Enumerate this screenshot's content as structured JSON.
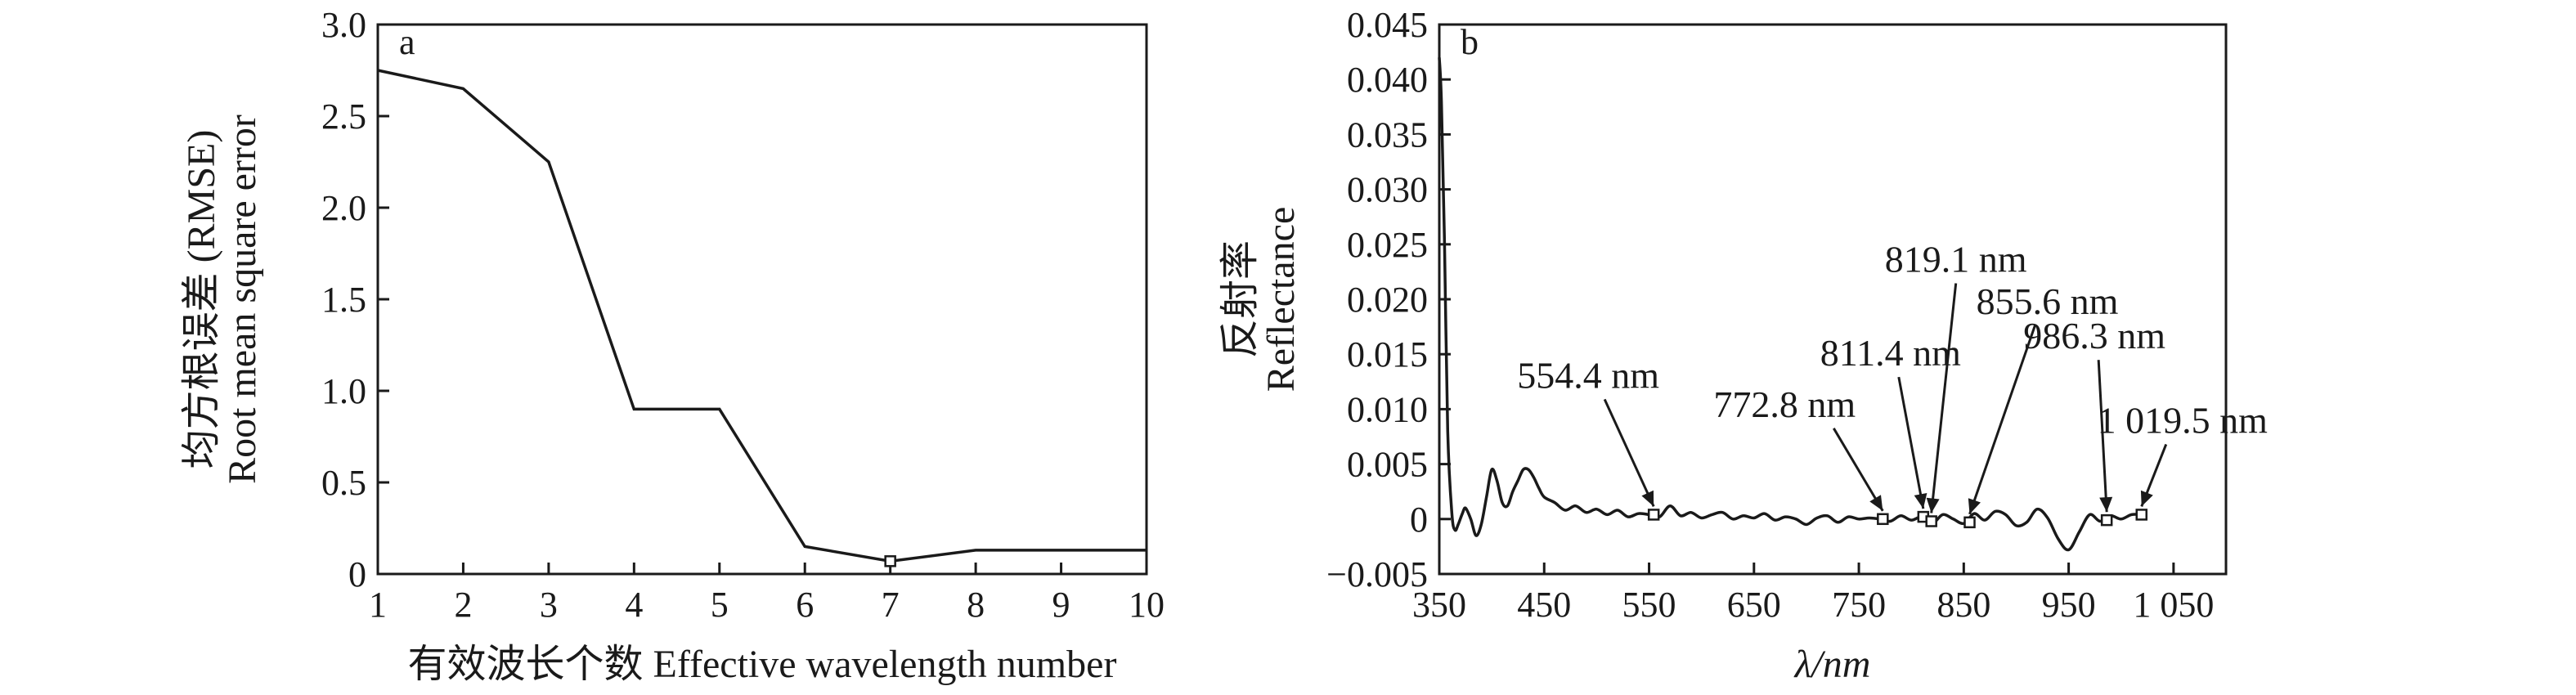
{
  "chart_data": [
    {
      "type": "line",
      "panel_label": "a",
      "xlabel": "有效波长个数 Effective wavelength number",
      "ylabel": "均方根误差 (RMSE)",
      "ylabel2": "Root mean square error",
      "xlim": [
        1,
        10
      ],
      "ylim": [
        0,
        3.0
      ],
      "xticks": [
        "1",
        "2",
        "3",
        "4",
        "5",
        "6",
        "7",
        "8",
        "9",
        "10"
      ],
      "yticks": [
        "0",
        "0.5",
        "1.0",
        "1.5",
        "2.0",
        "2.5",
        "3.0"
      ],
      "x": [
        1,
        2,
        3,
        4,
        5,
        6,
        7,
        8,
        9,
        10
      ],
      "y": [
        2.75,
        2.65,
        2.25,
        0.9,
        0.9,
        0.15,
        0.07,
        0.13,
        0.13,
        0.13
      ],
      "marked_point": {
        "x": 7,
        "y": 0.07
      },
      "color": "#1a1a1a"
    },
    {
      "type": "line",
      "panel_label": "b",
      "xlabel": "λ/nm",
      "ylabel": "反射率",
      "ylabel2": "Reflectance",
      "xlim": [
        350,
        1100
      ],
      "ylim": [
        -0.005,
        0.045
      ],
      "xticks": [
        "350",
        "450",
        "550",
        "650",
        "750",
        "850",
        "950",
        "1 050"
      ],
      "yticks": [
        "−0.005",
        "0",
        "0.005",
        "0.010",
        "0.015",
        "0.020",
        "0.025",
        "0.030",
        "0.035",
        "0.040",
        "0.045"
      ],
      "x": [
        350,
        352,
        355,
        358,
        362,
        365,
        368,
        372,
        375,
        380,
        385,
        390,
        395,
        400,
        405,
        410,
        415,
        420,
        425,
        430,
        435,
        440,
        445,
        450,
        460,
        470,
        480,
        490,
        500,
        510,
        520,
        530,
        540,
        550,
        560,
        570,
        580,
        590,
        600,
        610,
        620,
        630,
        640,
        650,
        660,
        670,
        680,
        690,
        700,
        710,
        720,
        730,
        740,
        750,
        760,
        770,
        780,
        790,
        800,
        810,
        820,
        830,
        840,
        850,
        860,
        870,
        880,
        890,
        900,
        910,
        920,
        930,
        940,
        950,
        960,
        970,
        980,
        990,
        1000,
        1010,
        1020
      ],
      "y": [
        0.042,
        0.038,
        0.025,
        0.008,
        0.0005,
        -0.001,
        -0.0005,
        0.0005,
        0.001,
        0,
        -0.0015,
        -0.0005,
        0.002,
        0.0045,
        0.0035,
        0.0015,
        0.0012,
        0.0025,
        0.0035,
        0.0045,
        0.0045,
        0.0038,
        0.0028,
        0.002,
        0.0015,
        0.0008,
        0.0012,
        0.0006,
        0.0009,
        0.0004,
        0.0008,
        0.0002,
        0.0005,
        0.0004,
        0.0002,
        0.0012,
        0.0003,
        0.0006,
        0.0001,
        0.0004,
        0.0006,
        0,
        0.0003,
        0.0001,
        0.0005,
        -0.0001,
        0.0002,
        0,
        -0.0005,
        0.0001,
        0.0003,
        -0.0003,
        0.0002,
        0,
        0.0001,
        0,
        -0.0002,
        0.0003,
        -0.0001,
        0.0002,
        -0.0004,
        0.0004,
        0,
        -0.0004,
        0.0005,
        -0.0001,
        0.0007,
        0.0004,
        -0.0006,
        -0.0003,
        0.0009,
        0.0001,
        -0.0018,
        -0.0028,
        -0.0012,
        0.0004,
        -0.0002,
        0.0003,
        0,
        0.0004,
        0.0004
      ],
      "markers": [
        {
          "x": 554.4,
          "y": 0.0004,
          "label": "554.4 nm"
        },
        {
          "x": 772.8,
          "y": 0.0,
          "label": "772.8 nm"
        },
        {
          "x": 811.4,
          "y": 0.0002,
          "label": "811.4 nm"
        },
        {
          "x": 819.1,
          "y": -0.0002,
          "label": "819.1 nm"
        },
        {
          "x": 855.6,
          "y": -0.0003,
          "label": "855.6 nm"
        },
        {
          "x": 986.3,
          "y": -0.0001,
          "label": "986.3 nm"
        },
        {
          "x": 1019.5,
          "y": 0.0004,
          "label": "1 019.5 nm"
        }
      ],
      "color": "#1a1a1a"
    }
  ]
}
